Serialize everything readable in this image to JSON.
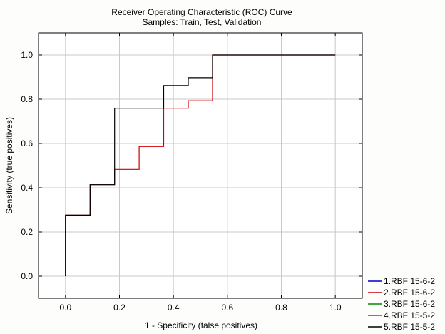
{
  "chart_data": {
    "type": "line",
    "title": "Receiver Operating Characteristic (ROC) Curve",
    "subtitle": "Samples: Train, Test, Validation",
    "xlabel": "1 - Specificity (false positives)",
    "ylabel": "Sensitivity (true positives)",
    "xlim": [
      -0.1,
      1.1
    ],
    "ylim": [
      -0.1,
      1.1
    ],
    "x_ticks": [
      0.0,
      0.2,
      0.4,
      0.6,
      0.8,
      1.0
    ],
    "y_ticks": [
      0.0,
      0.2,
      0.4,
      0.6,
      0.8,
      1.0
    ],
    "x_tick_labels": [
      "0.0",
      "0.2",
      "0.4",
      "0.6",
      "0.8",
      "1.0"
    ],
    "y_tick_labels": [
      "0.0",
      "0.2",
      "0.4",
      "0.6",
      "0.8",
      "1.0"
    ],
    "grid": true,
    "legend_position": "bottom-right-outside",
    "series": [
      {
        "name": "1.RBF 15-6-2",
        "color": "#0000cc",
        "points": []
      },
      {
        "name": "2.RBF 15-6-2",
        "color": "#cc0000",
        "points": [
          [
            0.0,
            0.0
          ],
          [
            0.0,
            0.276
          ],
          [
            0.091,
            0.276
          ],
          [
            0.091,
            0.414
          ],
          [
            0.182,
            0.414
          ],
          [
            0.182,
            0.483
          ],
          [
            0.273,
            0.483
          ],
          [
            0.273,
            0.586
          ],
          [
            0.364,
            0.586
          ],
          [
            0.364,
            0.759
          ],
          [
            0.455,
            0.759
          ],
          [
            0.455,
            0.793
          ],
          [
            0.545,
            0.793
          ],
          [
            0.545,
            1.0
          ],
          [
            1.0,
            1.0
          ]
        ]
      },
      {
        "name": "3.RBF 15-6-2",
        "color": "#008800",
        "points": []
      },
      {
        "name": "4.RBF 15-5-2",
        "color": "#cc00cc",
        "points": []
      },
      {
        "name": "5.RBF 15-5-2",
        "color": "#000000",
        "points": [
          [
            0.0,
            0.0
          ],
          [
            0.0,
            0.276
          ],
          [
            0.091,
            0.276
          ],
          [
            0.091,
            0.414
          ],
          [
            0.182,
            0.414
          ],
          [
            0.182,
            0.759
          ],
          [
            0.364,
            0.759
          ],
          [
            0.364,
            0.862
          ],
          [
            0.455,
            0.862
          ],
          [
            0.455,
            0.897
          ],
          [
            0.545,
            0.897
          ],
          [
            0.545,
            1.0
          ],
          [
            1.0,
            1.0
          ]
        ]
      }
    ]
  }
}
